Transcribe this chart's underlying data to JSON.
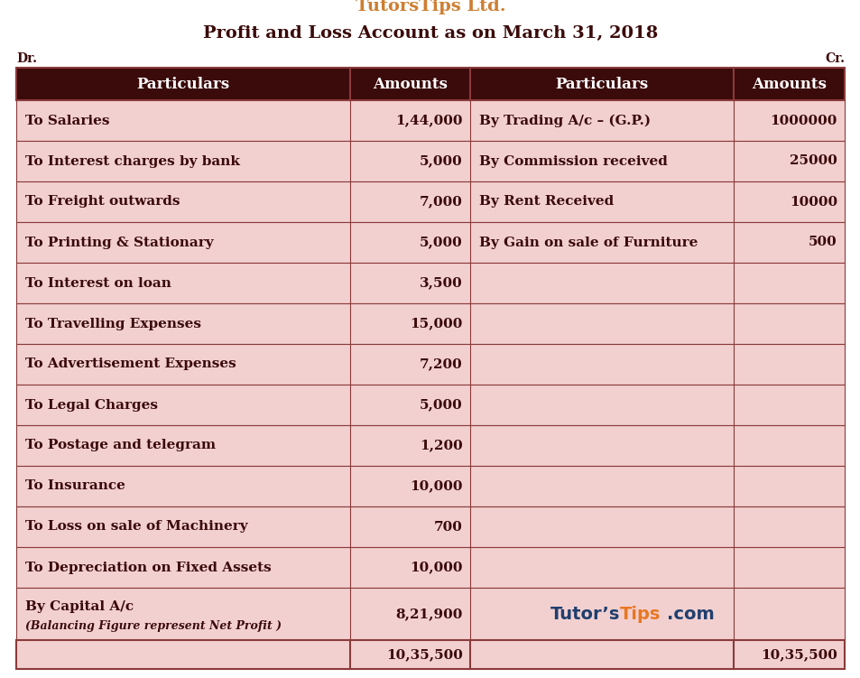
{
  "title1": "TutorsTips Ltd.",
  "title1_color": "#CD7F32",
  "title2": "Profit and Loss Account as on March 31, 2018",
  "title2_color": "#3B0A0A",
  "dr_label": "Dr.",
  "cr_label": "Cr.",
  "header_bg": "#3B0A0A",
  "header_text_color": "#FFFFFF",
  "body_bg": "#F2D0D0",
  "table_border_color": "#8B3A3A",
  "col_headers": [
    "Particulars",
    "Amounts",
    "Particulars",
    "Amounts"
  ],
  "left_rows": [
    [
      "To Salaries",
      "1,44,000"
    ],
    [
      "To Interest charges by bank",
      "5,000"
    ],
    [
      "To Freight outwards",
      "7,000"
    ],
    [
      "To Printing & Stationary",
      "5,000"
    ],
    [
      "To Interest on loan",
      "3,500"
    ],
    [
      "To Travelling Expenses",
      "15,000"
    ],
    [
      "To Advertisement Expenses",
      "7,200"
    ],
    [
      "To Legal Charges",
      "5,000"
    ],
    [
      "To Postage and telegram",
      "1,200"
    ],
    [
      "To Insurance",
      "10,000"
    ],
    [
      "To Loss on sale of Machinery",
      "700"
    ],
    [
      "To Depreciation on Fixed Assets",
      "10,000"
    ]
  ],
  "right_rows": [
    [
      "By Trading A/c – (G.P.)",
      "1000000"
    ],
    [
      "By Commission received",
      "25000"
    ],
    [
      "By Rent Received",
      "10000"
    ],
    [
      "By Gain on sale of Furniture",
      "500"
    ],
    [
      "",
      ""
    ],
    [
      "",
      ""
    ],
    [
      "",
      ""
    ],
    [
      "",
      ""
    ],
    [
      "",
      ""
    ],
    [
      "",
      ""
    ],
    [
      "",
      ""
    ],
    [
      "",
      ""
    ]
  ],
  "balancing_left_label": "By Capital A/c",
  "balancing_left_sub": "(Balancing Figure represent Net Profit )",
  "balancing_left_amount": "8,21,900",
  "total_left": "10,35,500",
  "total_right": "10,35,500",
  "watermark_tutor": "Tutor’s",
  "watermark_tips": "Tips",
  "watermark_com": ".com",
  "watermark_tutor_color": "#1F3F6E",
  "watermark_tips_color": "#E87722",
  "watermark_com_color": "#1F3F6E",
  "text_color": "#3B0A0A",
  "font_size_title1": 14,
  "font_size_title2": 14,
  "font_size_body": 11,
  "font_size_header": 12
}
